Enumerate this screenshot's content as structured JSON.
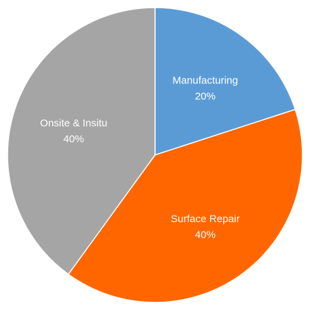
{
  "chart_data": {
    "type": "pie",
    "start_angle_deg": 0,
    "direction": "clockwise",
    "legend": "none",
    "slices": [
      {
        "label": "Manufacturing",
        "value": 20,
        "percent_label": "20%",
        "color": "#5b9bd5"
      },
      {
        "label": "Surface Repair",
        "value": 40,
        "percent_label": "40%",
        "color": "#ff6600"
      },
      {
        "label": "Onsite & Insitu",
        "value": 40,
        "percent_label": "40%",
        "color": "#a5a5a5"
      }
    ]
  }
}
